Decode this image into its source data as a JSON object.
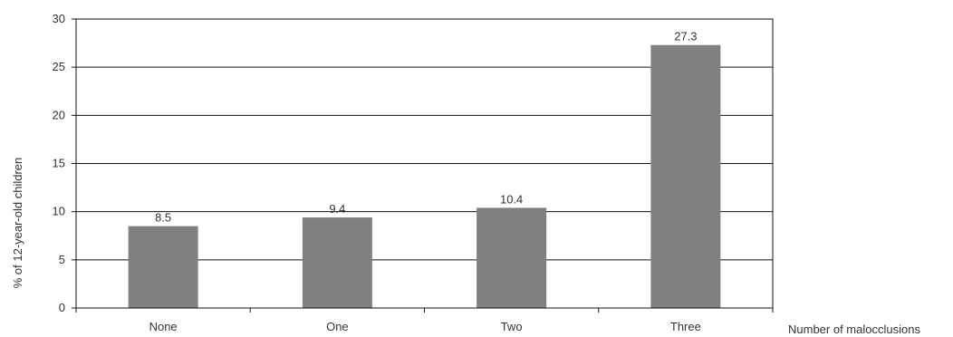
{
  "chart_data": {
    "type": "bar",
    "categories": [
      "None",
      "One",
      "Two",
      "Three"
    ],
    "values": [
      8.5,
      9.4,
      10.4,
      27.3
    ],
    "data_labels": [
      "8.5",
      "9.4",
      "10.4",
      "27.3"
    ],
    "title": "",
    "xlabel": "Number of malocclusions",
    "ylabel": "% of 12-year-old children",
    "ylim": [
      0,
      30
    ],
    "yticks": [
      0,
      5,
      10,
      15,
      20,
      25,
      30
    ],
    "ytick_labels": [
      "0",
      "5",
      "10",
      "15",
      "20",
      "25",
      "30"
    ],
    "grid": true,
    "legend": "none",
    "colors": {
      "bar": "#808083",
      "grid": "#111111",
      "frame": "#111111",
      "text": "#333333"
    }
  }
}
